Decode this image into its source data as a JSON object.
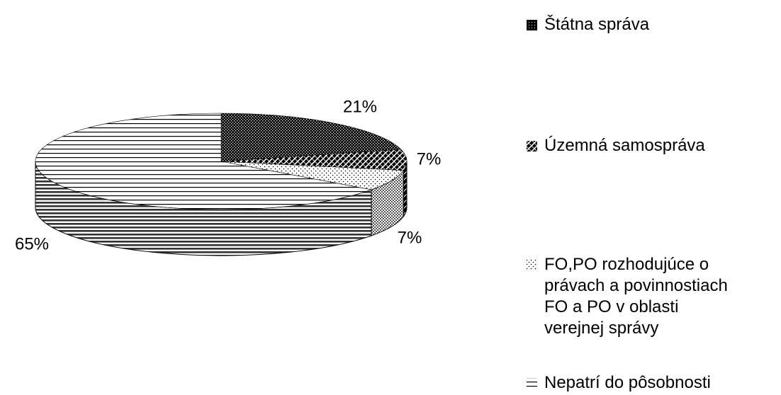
{
  "chart_data": {
    "type": "pie",
    "categories": [
      "Štátna správa",
      "Územná samospráva",
      "FO,PO rozhodujúce o právach a povinnostiach FO a PO v oblasti verejnej správy",
      "Nepatrí do pôsobnosti"
    ],
    "values": [
      21,
      7,
      7,
      65
    ],
    "value_labels": [
      "21%",
      "7%",
      "7%",
      "65%"
    ],
    "legend": "right"
  }
}
